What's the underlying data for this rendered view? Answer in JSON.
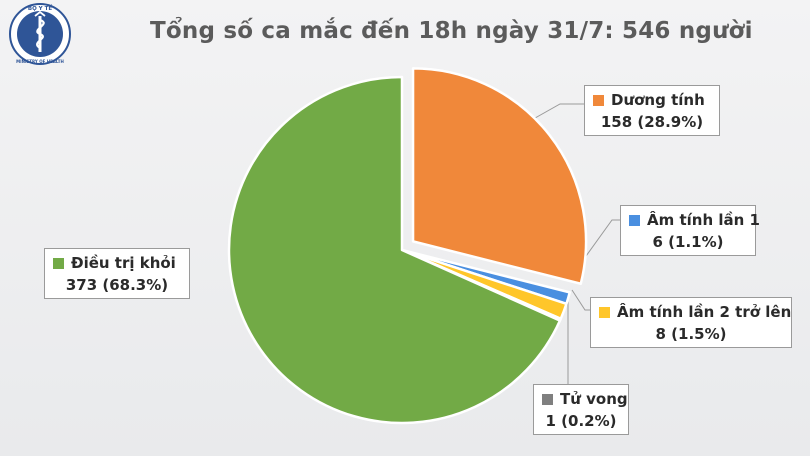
{
  "header": {
    "title": "Tổng số ca mắc đến 18h ngày 31/7: 546 người",
    "logo_top_text": "BỘ Y TẾ",
    "logo_bottom_text": "MINISTRY OF HEALTH"
  },
  "chart_data": {
    "type": "pie",
    "title": "Tổng số ca mắc đến 18h ngày 31/7: 546 người",
    "total": 546,
    "series": [
      {
        "name": "Dương tính",
        "value": 158,
        "percent": "28.9%",
        "display": "158 (28.9%)",
        "color": "#f0883a",
        "exploded": true
      },
      {
        "name": "Âm tính lần 1",
        "value": 6,
        "percent": "1.1%",
        "display": "6 (1.1%)",
        "color": "#4a8fe0",
        "exploded": false
      },
      {
        "name": "Âm tính lần 2 trở lên",
        "value": 8,
        "percent": "1.5%",
        "display": "8 (1.5%)",
        "color": "#ffc62a",
        "exploded": false
      },
      {
        "name": "Tử vong",
        "value": 1,
        "percent": "0.2%",
        "display": "1 (0.2%)",
        "color": "#7f7f7f",
        "exploded": false
      },
      {
        "name": "Điều trị khỏi",
        "value": 373,
        "percent": "68.3%",
        "display": "373 (68.3%)",
        "color": "#72aa46",
        "exploded": false
      }
    ],
    "legend": "callout-labels",
    "grid": false
  }
}
